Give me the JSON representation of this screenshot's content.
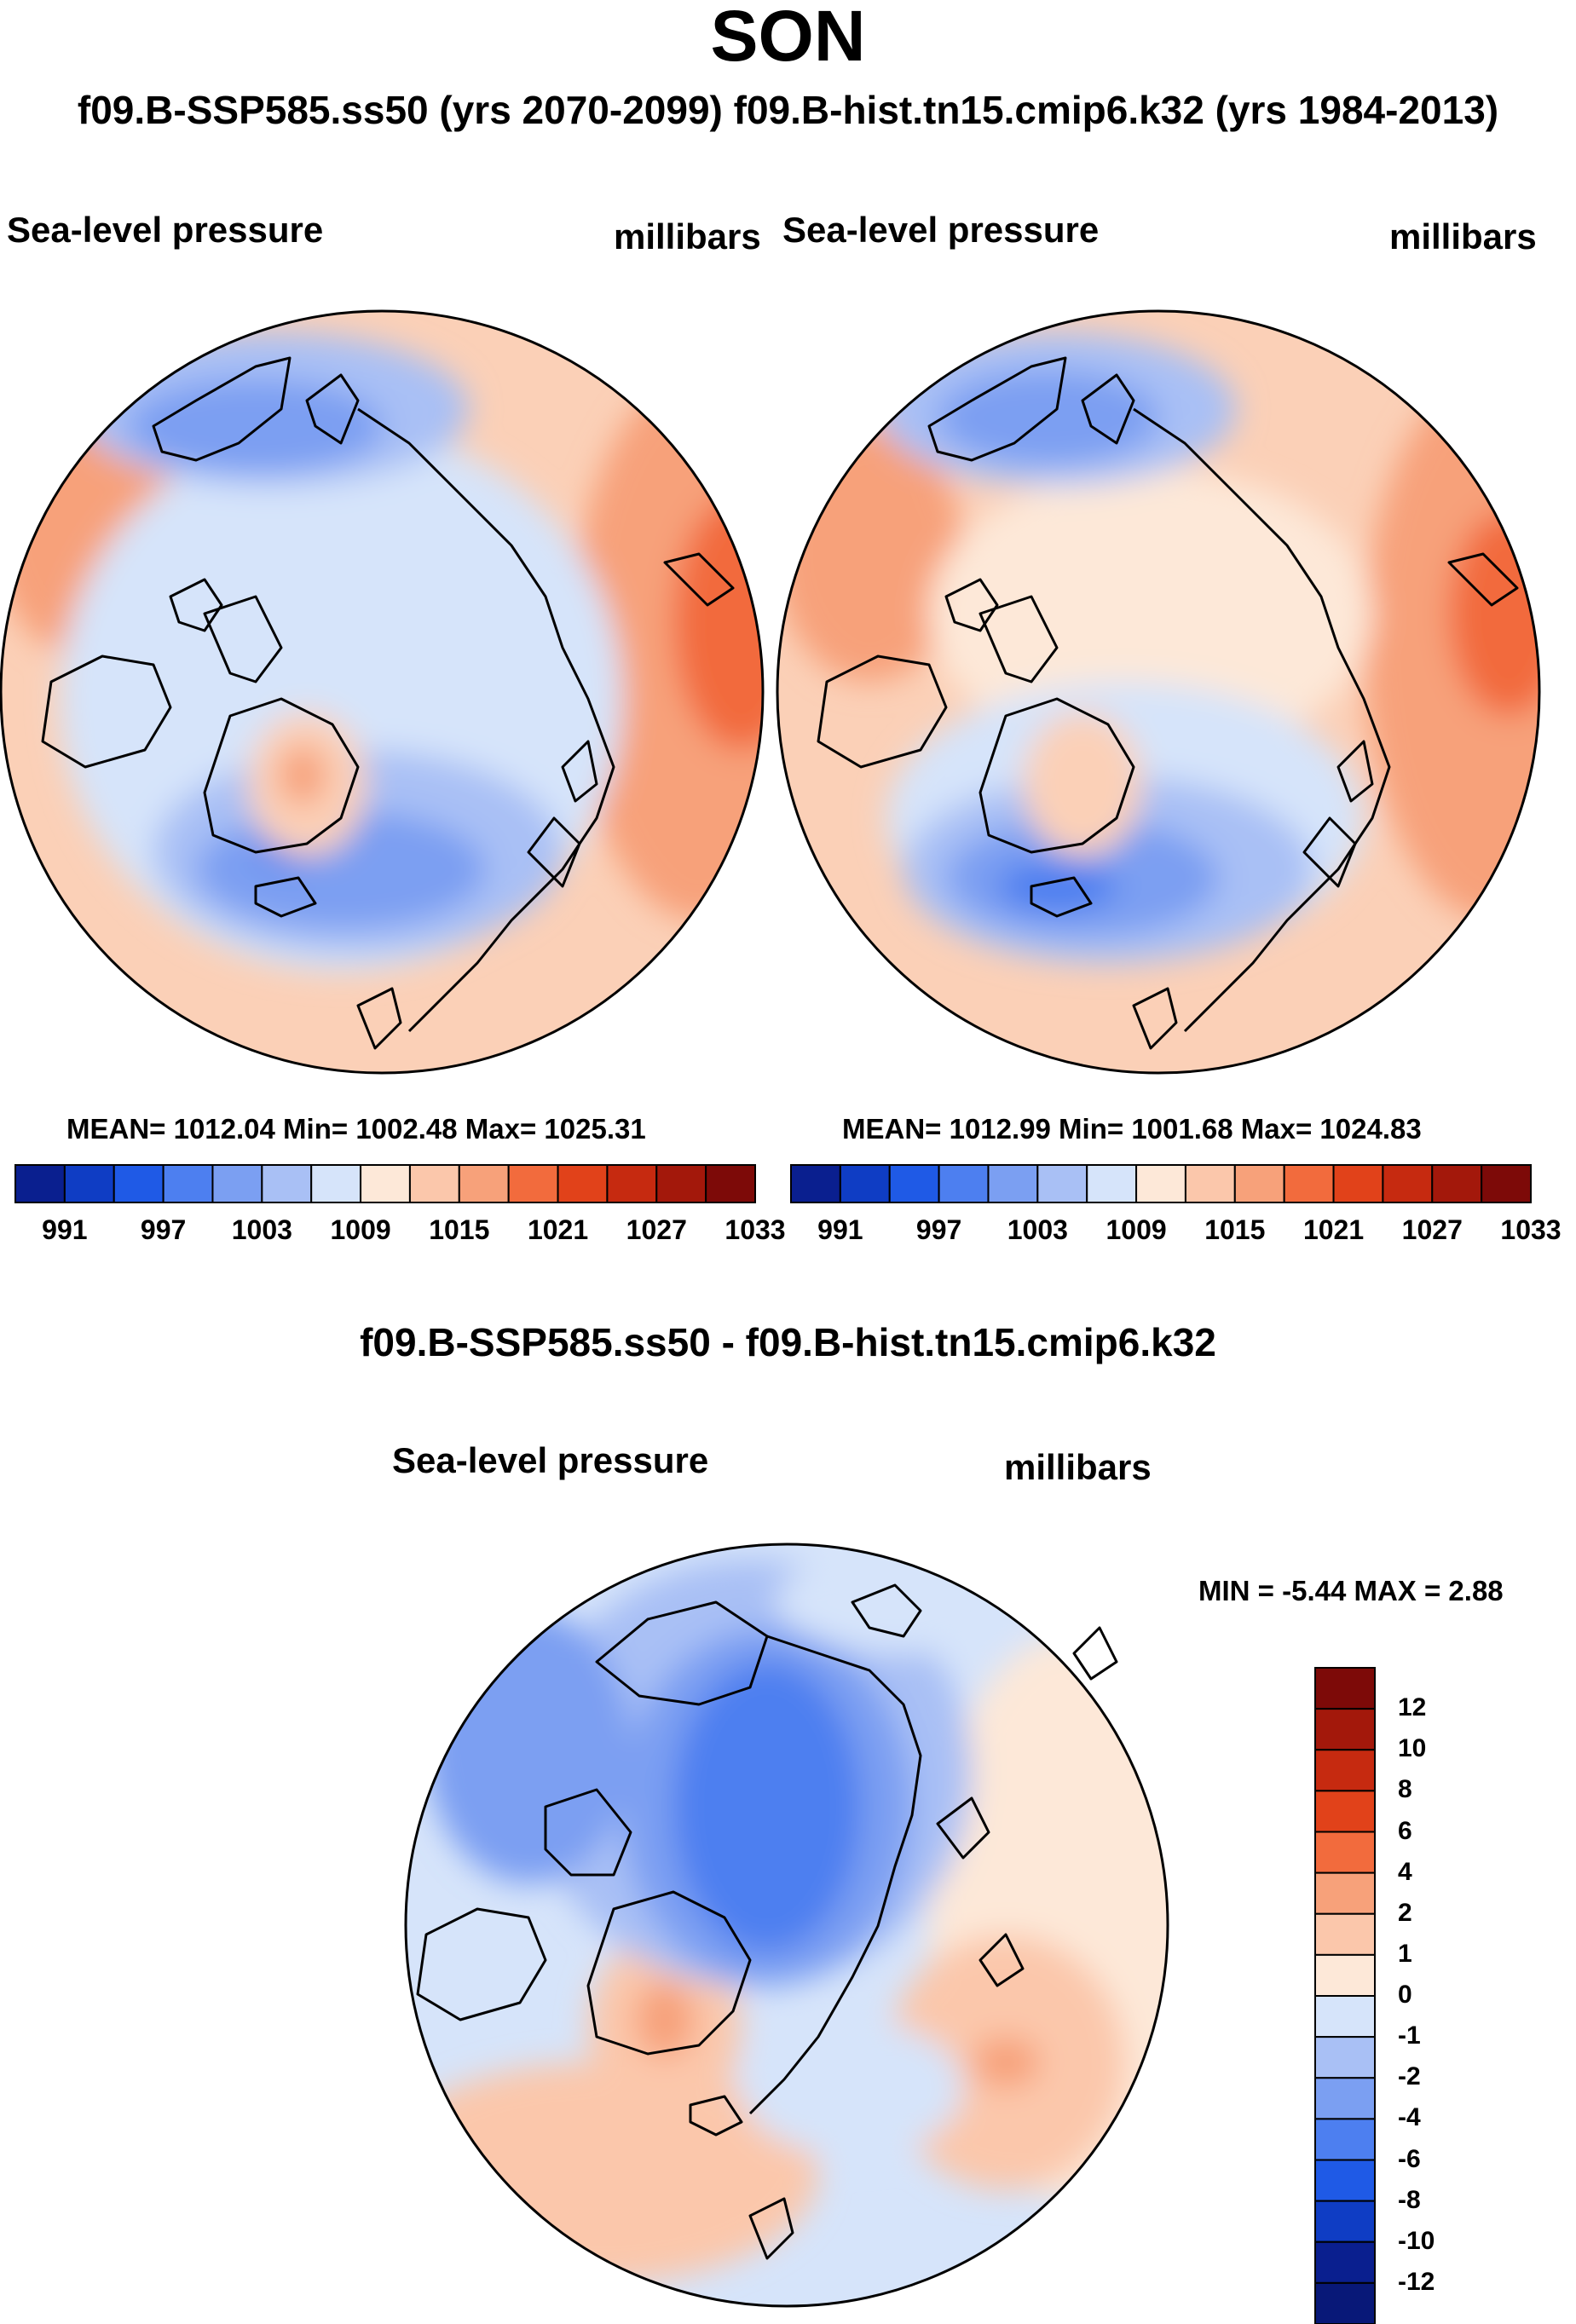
{
  "header": {
    "title": "SON",
    "subtitle": "f09.B-SSP585.ss50 (yrs 2070-2099)  f09.B-hist.tn15.cmip6.k32 (yrs 1984-2013)"
  },
  "panels": {
    "left": {
      "variable": "Sea-level pressure",
      "units": "millibars",
      "stats": "MEAN= 1012.04  Min= 1002.48  Max= 1025.31"
    },
    "right": {
      "variable": "Sea-level pressure",
      "units": "millibars",
      "stats": "MEAN= 1012.99  Min= 1001.68  Max= 1024.83"
    },
    "diff": {
      "title": "f09.B-SSP585.ss50 - f09.B-hist.tn15.cmip6.k32",
      "variable": "Sea-level pressure",
      "units": "millibars",
      "stats": "MIN =  -5.44 MAX =   2.88"
    }
  },
  "colorbar_abs": {
    "labels": [
      "991",
      "997",
      "1003",
      "1009",
      "1015",
      "1021",
      "1027",
      "1033"
    ],
    "colors": [
      "#0a1f8f",
      "#0f3dc4",
      "#1f5ae6",
      "#4d7ff0",
      "#7b9ff2",
      "#a9c0f5",
      "#d6e4fa",
      "#fde8d8",
      "#fbc7ab",
      "#f7a17a",
      "#f26b3d",
      "#e1421a",
      "#c62a10",
      "#a3180b",
      "#7d0a08"
    ]
  },
  "colorbar_diff": {
    "labels": [
      "12",
      "10",
      "8",
      "6",
      "4",
      "2",
      "1",
      "0",
      "-1",
      "-2",
      "-4",
      "-6",
      "-8",
      "-10",
      "-12"
    ],
    "colors": [
      "#7d0a08",
      "#a3180b",
      "#c62a10",
      "#e1421a",
      "#f26b3d",
      "#f7a17a",
      "#fbc7ab",
      "#fde8d8",
      "#d6e4fa",
      "#a9c0f5",
      "#7b9ff2",
      "#4d7ff0",
      "#1f5ae6",
      "#0f3dc4",
      "#0a1f8f",
      "#081878"
    ]
  }
}
